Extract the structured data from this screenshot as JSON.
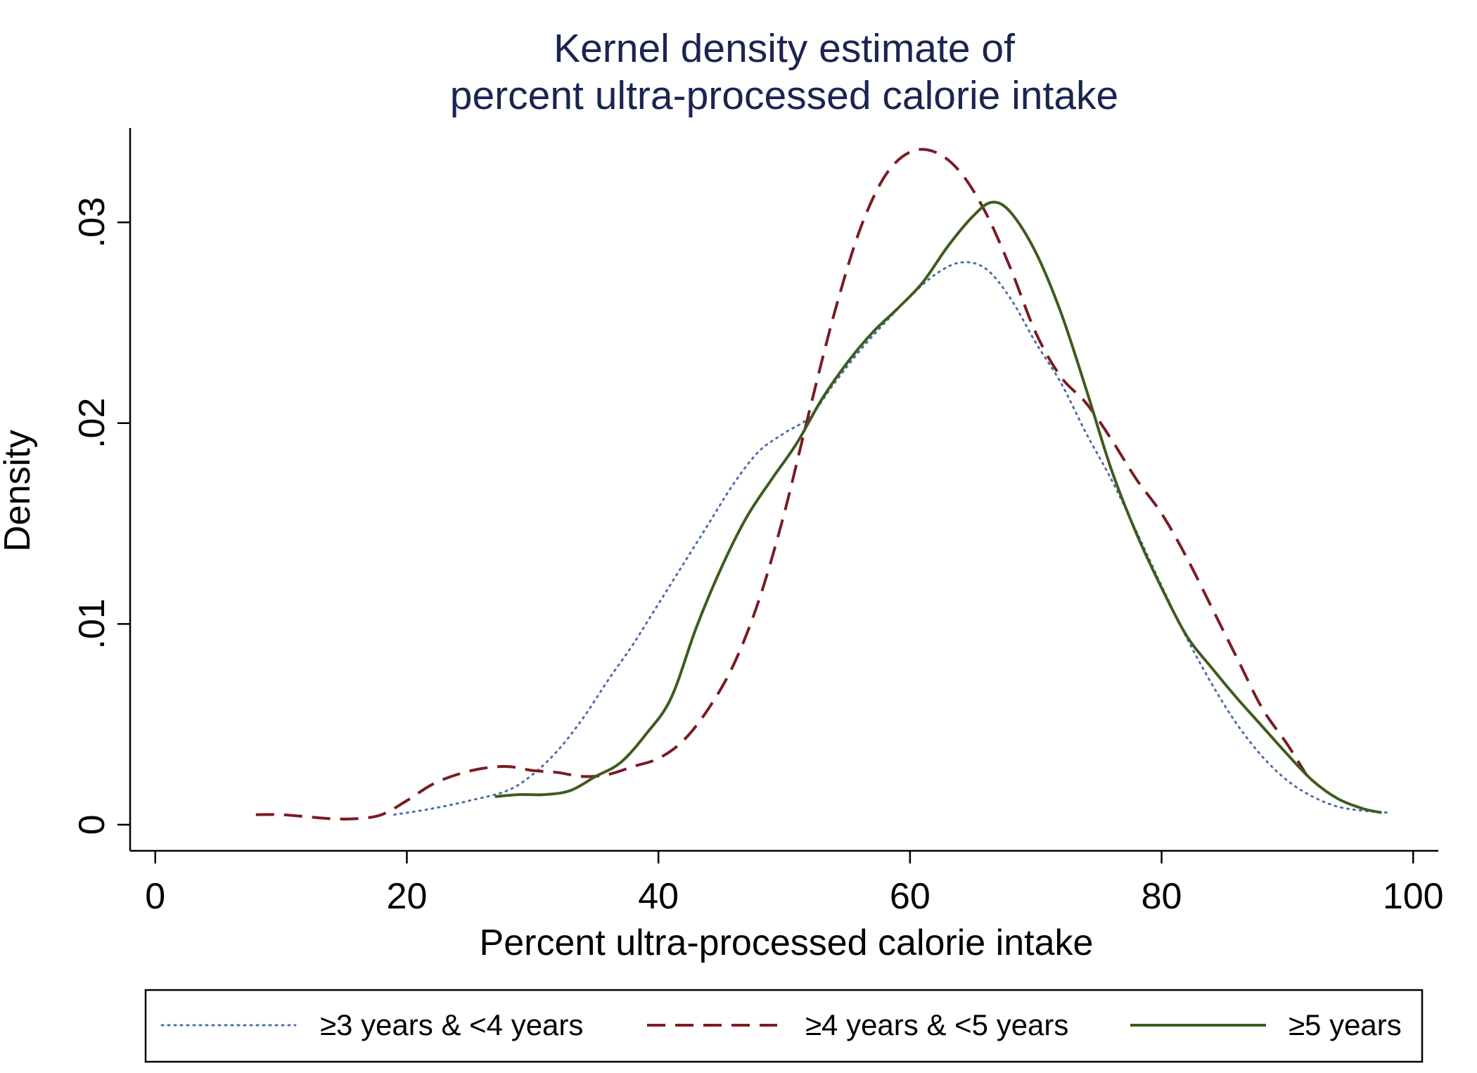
{
  "chart_data": {
    "type": "line",
    "title": [
      "Kernel density estimate of",
      "percent ultra-processed calorie intake"
    ],
    "xlabel": "Percent ultra-processed calorie intake",
    "ylabel": "Density",
    "xlim": [
      -2,
      102
    ],
    "ylim": [
      -0.0013,
      0.0347
    ],
    "xticks": [
      0,
      20,
      40,
      60,
      80,
      100
    ],
    "xtick_labels": [
      "0",
      "20",
      "40",
      "60",
      "80",
      "100"
    ],
    "yticks": [
      0,
      0.01,
      0.02,
      0.03
    ],
    "ytick_labels": [
      "0",
      ".01",
      ".02",
      ".03"
    ],
    "grid": false,
    "legend_position": "bottom",
    "series": [
      {
        "name": "≥3 years & <4 years",
        "color": "#4a6ea8",
        "style": "dotted",
        "x": [
          19,
          22,
          25,
          28,
          30,
          32,
          34,
          36,
          38,
          40,
          42,
          44,
          46,
          48,
          50,
          52,
          54,
          56,
          58,
          60,
          62,
          64,
          66,
          68,
          70,
          72,
          74,
          76,
          78,
          80,
          82,
          84,
          86,
          88,
          90,
          92,
          94,
          96,
          98
        ],
        "y": [
          0.0005,
          0.0008,
          0.0012,
          0.0017,
          0.0025,
          0.0037,
          0.0053,
          0.0072,
          0.009,
          0.011,
          0.013,
          0.015,
          0.017,
          0.0186,
          0.0195,
          0.0203,
          0.022,
          0.0236,
          0.025,
          0.0263,
          0.0274,
          0.028,
          0.0277,
          0.0262,
          0.024,
          0.022,
          0.0195,
          0.0172,
          0.0146,
          0.0119,
          0.0093,
          0.007,
          0.005,
          0.0034,
          0.0022,
          0.0014,
          0.0009,
          0.0007,
          0.0006
        ]
      },
      {
        "name": "≥4 years & <5 years",
        "color": "#7b1b24",
        "style": "dashed",
        "x": [
          8,
          10,
          12,
          14,
          16,
          18,
          20,
          22,
          24,
          26,
          28,
          30,
          32,
          34,
          36,
          38,
          40,
          42,
          44,
          46,
          48,
          50,
          52,
          54,
          56,
          58,
          60,
          62,
          64,
          66,
          68,
          70,
          72,
          74,
          76,
          78,
          80,
          82,
          84,
          86,
          88,
          90,
          91.5
        ],
        "y": [
          0.0005,
          0.0005,
          0.0004,
          0.0003,
          0.0003,
          0.0005,
          0.0012,
          0.002,
          0.0025,
          0.0028,
          0.0029,
          0.0027,
          0.0026,
          0.0024,
          0.0025,
          0.0029,
          0.0033,
          0.0042,
          0.0058,
          0.008,
          0.0112,
          0.0155,
          0.0206,
          0.0255,
          0.0296,
          0.0323,
          0.0335,
          0.0335,
          0.0325,
          0.0305,
          0.0277,
          0.0245,
          0.0223,
          0.021,
          0.0192,
          0.0172,
          0.0155,
          0.0133,
          0.0108,
          0.0083,
          0.0058,
          0.004,
          0.0025
        ]
      },
      {
        "name": "≥5 years",
        "color": "#3d5c1f",
        "style": "solid",
        "x": [
          27,
          29,
          31,
          33,
          35,
          37,
          39,
          41,
          43,
          45,
          47,
          49,
          51,
          53,
          55,
          57,
          59,
          61,
          63,
          65,
          66.5,
          68,
          70,
          72,
          74,
          76,
          78,
          80,
          82,
          84,
          86,
          88,
          90,
          92,
          94,
          96,
          97.5
        ],
        "y": [
          0.0014,
          0.0015,
          0.0015,
          0.0017,
          0.0024,
          0.0031,
          0.0045,
          0.0063,
          0.0098,
          0.0128,
          0.0153,
          0.0172,
          0.019,
          0.0212,
          0.023,
          0.0245,
          0.0257,
          0.027,
          0.0288,
          0.0303,
          0.031,
          0.0305,
          0.0285,
          0.0255,
          0.0217,
          0.0177,
          0.0145,
          0.0118,
          0.0094,
          0.0078,
          0.0063,
          0.0049,
          0.0035,
          0.0022,
          0.0013,
          0.0008,
          0.0006
        ]
      }
    ]
  }
}
